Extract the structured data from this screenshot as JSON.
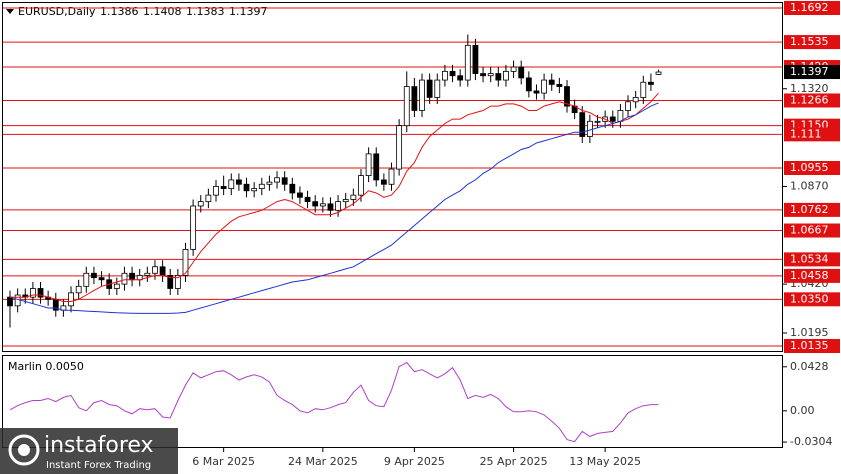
{
  "chart_data": {
    "type": "candlestick",
    "title": "EURUSD,Daily",
    "bull_color": "#ffffff",
    "bear_color": "#000000",
    "level_color": "#e01010",
    "ylim": [
      1.0112,
      1.1715
    ],
    "yticks": [
      {
        "value": 1.132,
        "label": "1.1320"
      },
      {
        "value": 1.087,
        "label": "1.0870"
      },
      {
        "value": 1.042,
        "label": "1.0420"
      },
      1.0195
    ],
    "levels": [
      1.1692,
      1.1535,
      {
        "value": 1.142,
        "label": "1.1420"
      },
      1.1266,
      {
        "value": 1.115,
        "label": "1.1150"
      },
      1.111,
      1.0955,
      1.0762,
      1.0667,
      1.0534,
      1.0458,
      {
        "value": 1.035,
        "label": "1.0350"
      },
      1.0135
    ],
    "categories": [
      null,
      null,
      null,
      null,
      null,
      null,
      null,
      null,
      null,
      null,
      null,
      null,
      null,
      null,
      null,
      null,
      null,
      null,
      null,
      null,
      null,
      null,
      null,
      null,
      null,
      null,
      null,
      null,
      "6 Mar 2025",
      null,
      null,
      null,
      null,
      null,
      null,
      null,
      null,
      null,
      null,
      null,
      null,
      "24 Mar 2025",
      null,
      null,
      null,
      null,
      null,
      null,
      null,
      null,
      null,
      null,
      null,
      "9 Apr 2025",
      null,
      null,
      null,
      null,
      null,
      null,
      null,
      null,
      null,
      null,
      null,
      null,
      "25 Apr 2025",
      null,
      null,
      null,
      null,
      null,
      null,
      null,
      null,
      null,
      null,
      null,
      "13 May 2025",
      null,
      null,
      null,
      null,
      null,
      null,
      null
    ],
    "candles": [
      [
        1.036,
        1.039,
        1.022,
        1.032
      ],
      [
        1.032,
        1.04,
        1.029,
        1.037
      ],
      [
        1.037,
        1.04,
        1.033,
        1.036
      ],
      [
        1.036,
        1.043,
        1.033,
        1.04
      ],
      [
        1.04,
        1.043,
        1.033,
        1.036
      ],
      [
        1.036,
        1.039,
        1.032,
        1.035
      ],
      [
        1.035,
        1.038,
        1.027,
        1.03
      ],
      [
        1.03,
        1.035,
        1.027,
        1.032
      ],
      [
        1.032,
        1.041,
        1.029,
        1.038
      ],
      [
        1.038,
        1.044,
        1.035,
        1.041
      ],
      [
        1.041,
        1.05,
        1.038,
        1.047
      ],
      [
        1.047,
        1.05,
        1.042,
        1.045
      ],
      [
        1.045,
        1.048,
        1.041,
        1.044
      ],
      [
        1.044,
        1.047,
        1.037,
        1.04
      ],
      [
        1.04,
        1.045,
        1.037,
        1.042
      ],
      [
        1.042,
        1.05,
        1.039,
        1.047
      ],
      [
        1.047,
        1.05,
        1.041,
        1.044
      ],
      [
        1.044,
        1.049,
        1.041,
        1.046
      ],
      [
        1.046,
        1.05,
        1.043,
        1.047
      ],
      [
        1.047,
        1.053,
        1.044,
        1.05
      ],
      [
        1.05,
        1.053,
        1.043,
        1.046
      ],
      [
        1.046,
        1.049,
        1.037,
        1.04
      ],
      [
        1.04,
        1.049,
        1.037,
        1.046
      ],
      [
        1.046,
        1.061,
        1.043,
        1.058
      ],
      [
        1.058,
        1.081,
        1.055,
        1.078
      ],
      [
        1.078,
        1.083,
        1.075,
        1.08
      ],
      [
        1.08,
        1.086,
        1.077,
        1.083
      ],
      [
        1.083,
        1.09,
        1.08,
        1.087
      ],
      [
        1.087,
        1.092,
        1.083,
        1.086
      ],
      [
        1.086,
        1.093,
        1.083,
        1.09
      ],
      [
        1.09,
        1.093,
        1.085,
        1.088
      ],
      [
        1.088,
        1.091,
        1.082,
        1.085
      ],
      [
        1.085,
        1.089,
        1.082,
        1.086
      ],
      [
        1.086,
        1.091,
        1.083,
        1.088
      ],
      [
        1.088,
        1.092,
        1.085,
        1.089
      ],
      [
        1.089,
        1.094,
        1.086,
        1.091
      ],
      [
        1.091,
        1.094,
        1.085,
        1.088
      ],
      [
        1.088,
        1.091,
        1.081,
        1.084
      ],
      [
        1.084,
        1.087,
        1.079,
        1.082
      ],
      [
        1.082,
        1.085,
        1.077,
        1.08
      ],
      [
        1.08,
        1.083,
        1.075,
        1.078
      ],
      [
        1.078,
        1.082,
        1.075,
        1.079
      ],
      [
        1.079,
        1.082,
        1.073,
        1.076
      ],
      [
        1.076,
        1.083,
        1.073,
        1.08
      ],
      [
        1.08,
        1.084,
        1.077,
        1.081
      ],
      [
        1.081,
        1.086,
        1.078,
        1.083
      ],
      [
        1.083,
        1.095,
        1.08,
        1.092
      ],
      [
        1.092,
        1.105,
        1.089,
        1.102
      ],
      [
        1.102,
        1.105,
        1.087,
        1.09
      ],
      [
        1.09,
        1.093,
        1.085,
        1.088
      ],
      [
        1.088,
        1.098,
        1.085,
        1.095
      ],
      [
        1.095,
        1.118,
        1.092,
        1.115
      ],
      [
        1.115,
        1.14,
        1.112,
        1.133
      ],
      [
        1.133,
        1.137,
        1.119,
        1.122
      ],
      [
        1.122,
        1.139,
        1.119,
        1.136
      ],
      [
        1.136,
        1.139,
        1.125,
        1.128
      ],
      [
        1.128,
        1.139,
        1.125,
        1.136
      ],
      [
        1.136,
        1.143,
        1.133,
        1.14
      ],
      [
        1.14,
        1.143,
        1.135,
        1.138
      ],
      [
        1.138,
        1.141,
        1.133,
        1.136
      ],
      [
        1.136,
        1.157,
        1.133,
        1.152
      ],
      [
        1.152,
        1.155,
        1.136,
        1.139
      ],
      [
        1.139,
        1.142,
        1.135,
        1.138
      ],
      [
        1.138,
        1.142,
        1.135,
        1.139
      ],
      [
        1.139,
        1.142,
        1.133,
        1.136
      ],
      [
        1.136,
        1.143,
        1.133,
        1.14
      ],
      [
        1.14,
        1.145,
        1.137,
        1.142
      ],
      [
        1.142,
        1.145,
        1.134,
        1.137
      ],
      [
        1.137,
        1.14,
        1.128,
        1.131
      ],
      [
        1.131,
        1.134,
        1.127,
        1.13
      ],
      [
        1.13,
        1.139,
        1.127,
        1.136
      ],
      [
        1.136,
        1.139,
        1.131,
        1.134
      ],
      [
        1.134,
        1.137,
        1.13,
        1.133
      ],
      [
        1.133,
        1.136,
        1.121,
        1.124
      ],
      [
        1.124,
        1.127,
        1.118,
        1.121
      ],
      [
        1.121,
        1.124,
        1.107,
        1.11
      ],
      [
        1.11,
        1.12,
        1.107,
        1.117
      ],
      [
        1.117,
        1.12,
        1.114,
        1.117
      ],
      [
        1.117,
        1.122,
        1.114,
        1.119
      ],
      [
        1.119,
        1.122,
        1.114,
        1.117
      ],
      [
        1.117,
        1.125,
        1.114,
        1.122
      ],
      [
        1.122,
        1.129,
        1.119,
        1.126
      ],
      [
        1.126,
        1.131,
        1.123,
        1.128
      ],
      [
        1.128,
        1.138,
        1.125,
        1.135
      ],
      [
        1.135,
        1.139,
        1.131,
        1.134
      ],
      [
        1.1386,
        1.1408,
        1.1383,
        1.1397
      ]
    ],
    "lines": [
      {
        "color": "#e81010",
        "values": [
          1.036,
          1.036,
          1.036,
          1.037,
          1.037,
          1.036,
          1.035,
          1.034,
          1.034,
          1.035,
          1.037,
          1.039,
          1.041,
          1.042,
          1.043,
          1.044,
          1.044,
          1.044,
          1.045,
          1.046,
          1.046,
          1.045,
          1.045,
          1.047,
          1.052,
          1.057,
          1.061,
          1.065,
          1.068,
          1.071,
          1.073,
          1.074,
          1.075,
          1.076,
          1.078,
          1.08,
          1.081,
          1.08,
          1.078,
          1.076,
          1.074,
          1.074,
          1.074,
          1.075,
          1.077,
          1.079,
          1.082,
          1.085,
          1.084,
          1.082,
          1.083,
          1.087,
          1.094,
          1.098,
          1.105,
          1.11,
          1.113,
          1.116,
          1.118,
          1.118,
          1.12,
          1.121,
          1.122,
          1.124,
          1.124,
          1.125,
          1.125,
          1.124,
          1.122,
          1.122,
          1.124,
          1.125,
          1.126,
          1.125,
          1.124,
          1.122,
          1.121,
          1.119,
          1.118,
          1.116,
          1.117,
          1.118,
          1.12,
          1.123,
          1.126,
          1.13
        ]
      },
      {
        "color": "#1a35d8",
        "values": [
          1.036,
          1.035,
          1.034,
          1.033,
          1.032,
          1.031,
          1.031,
          1.03,
          1.03,
          1.0298,
          1.0296,
          1.0294,
          1.0292,
          1.029,
          1.0288,
          1.0287,
          1.0286,
          1.0285,
          1.0285,
          1.0285,
          1.0285,
          1.0285,
          1.0287,
          1.029,
          1.03,
          1.031,
          1.032,
          1.033,
          1.034,
          1.035,
          1.036,
          1.037,
          1.038,
          1.039,
          1.04,
          1.041,
          1.042,
          1.043,
          1.0435,
          1.044,
          1.045,
          1.046,
          1.047,
          1.048,
          1.049,
          1.05,
          1.052,
          1.054,
          1.056,
          1.058,
          1.06,
          1.063,
          1.066,
          1.069,
          1.072,
          1.075,
          1.078,
          1.081,
          1.083,
          1.085,
          1.088,
          1.09,
          1.093,
          1.095,
          1.098,
          1.1,
          1.102,
          1.104,
          1.105,
          1.107,
          1.108,
          1.109,
          1.11,
          1.111,
          1.112,
          1.112,
          1.113,
          1.114,
          1.115,
          1.116,
          1.117,
          1.119,
          1.12,
          1.122,
          1.124,
          1.1255
        ]
      }
    ],
    "indicator": {
      "label": "Marlin 0.0050",
      "color": "#b040c8",
      "ylim": [
        -0.0352,
        0.0533
      ],
      "yticks": [
        0.0428,
        {
          "value": 0,
          "label": "0.00"
        },
        -0.0304
      ],
      "values": [
        0.001,
        0.005,
        0.008,
        0.01,
        0.01,
        0.012,
        0.009,
        0.013,
        0.015,
        0.003,
        0.0,
        0.008,
        0.01,
        0.006,
        0.005,
        0.0,
        -0.003,
        0.002,
        0.001,
        0.002,
        -0.006,
        -0.007,
        0.01,
        0.025,
        0.037,
        0.032,
        0.035,
        0.038,
        0.039,
        0.035,
        0.03,
        0.033,
        0.035,
        0.033,
        0.028,
        0.015,
        0.01,
        0.006,
        0.0,
        -0.002,
        0.002,
        0.001,
        0.003,
        0.006,
        0.008,
        0.018,
        0.025,
        0.01,
        0.005,
        0.004,
        0.02,
        0.043,
        0.047,
        0.038,
        0.04,
        0.036,
        0.032,
        0.036,
        0.042,
        0.03,
        0.012,
        0.015,
        0.013,
        0.016,
        0.012,
        0.004,
        -0.001,
        -0.001,
        0.0,
        -0.001,
        -0.004,
        -0.01,
        -0.017,
        -0.028,
        -0.03,
        -0.02,
        -0.025,
        -0.022,
        -0.021,
        -0.02,
        -0.012,
        -0.002,
        0.002,
        0.005,
        0.006,
        0.006
      ]
    }
  },
  "watermark": {
    "brand": "instaforex",
    "tagline": "Instant Forex Trading"
  }
}
